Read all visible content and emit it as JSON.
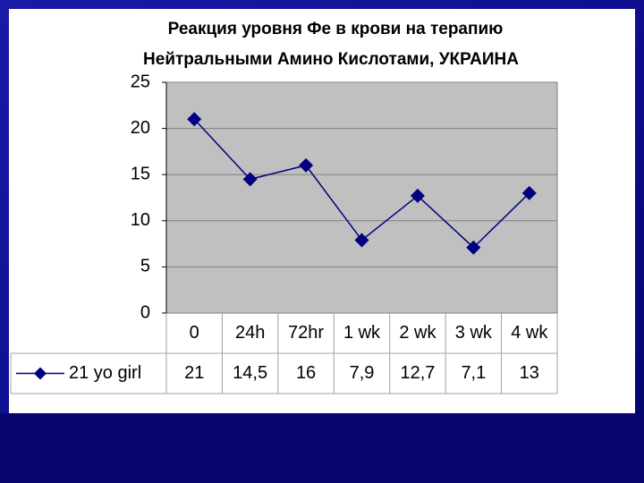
{
  "chart_data": {
    "type": "line",
    "title": [
      "Реакция уровня Фе в крови на терапию",
      "Нейтральными Амино Кислотами, УКРАИНА"
    ],
    "categories": [
      "0",
      "24h",
      "72hr",
      "1 wk",
      "2 wk",
      "3 wk",
      "4 wk"
    ],
    "series": [
      {
        "name": "21 yo girl",
        "color": "#000080",
        "values": [
          21,
          14.5,
          16,
          7.9,
          12.7,
          7.1,
          13
        ],
        "value_labels": [
          "21",
          "14,5",
          "16",
          "7,9",
          "12,7",
          "7,1",
          "13"
        ]
      }
    ],
    "ylim": [
      0,
      25
    ],
    "yticks": [
      0,
      5,
      10,
      15,
      20,
      25
    ],
    "grid": true,
    "data_table": true
  }
}
